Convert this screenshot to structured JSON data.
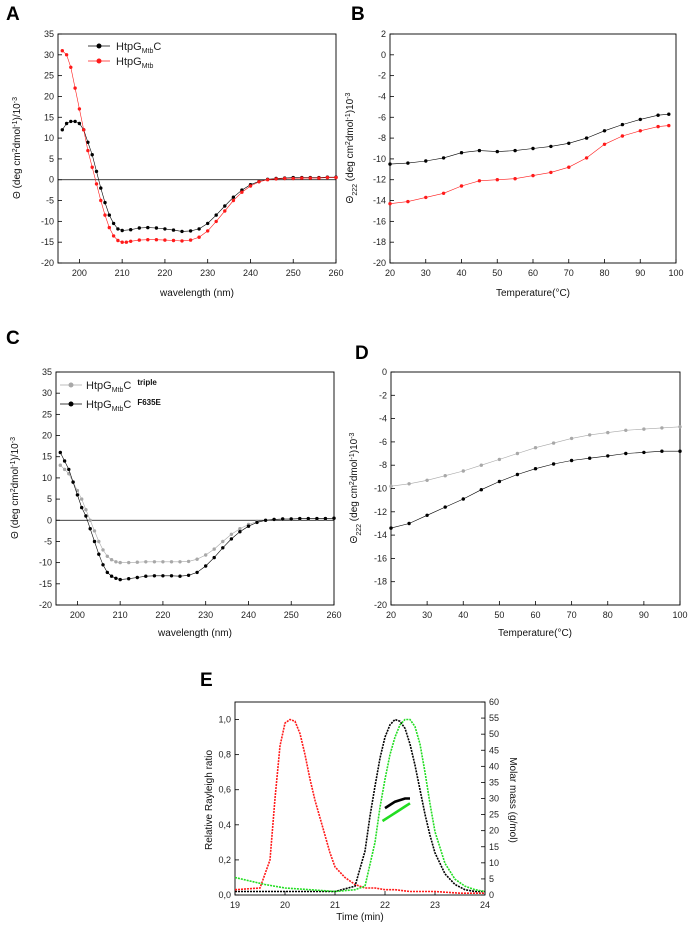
{
  "colors": {
    "black": "#000000",
    "red": "#ff1a1a",
    "grey": "#a8a8a8",
    "green": "#22dd22"
  },
  "chart_data": [
    {
      "panel": "A",
      "type": "scatter",
      "xlabel": "wavelength (nm)",
      "ylabel_main": "Θ (deg cm",
      "ylabel_sup": "2",
      "ylabel_mid": "dmol",
      "ylabel_sup2": "-1",
      "ylabel_end": ")/10",
      "ylabel_sup3": "-3",
      "xlim": [
        195,
        260
      ],
      "ylim": [
        -20,
        35
      ],
      "xticks": [
        "200",
        "210",
        "220",
        "230",
        "240",
        "250",
        "260"
      ],
      "yticks": [
        "35",
        "30",
        "25",
        "20",
        "15",
        "10",
        "5",
        "0",
        "-5",
        "-10",
        "-15",
        "-20"
      ],
      "series": [
        {
          "name": "HtpG",
          "name_sub": "Mtb",
          "name_suffix": "C",
          "color": "#000000",
          "x": [
            196,
            197,
            198,
            199,
            200,
            201,
            202,
            203,
            204,
            205,
            206,
            207,
            208,
            209,
            210,
            212,
            214,
            216,
            218,
            220,
            222,
            224,
            226,
            228,
            230,
            232,
            234,
            236,
            238,
            240,
            242,
            244,
            246,
            248,
            250,
            252,
            254,
            256,
            258,
            260
          ],
          "y": [
            12,
            13.5,
            14,
            14,
            13.5,
            12,
            9,
            6,
            2,
            -2,
            -5.5,
            -8.5,
            -10.5,
            -11.8,
            -12.2,
            -12,
            -11.6,
            -11.5,
            -11.6,
            -11.8,
            -12.1,
            -12.4,
            -12.3,
            -11.8,
            -10.5,
            -8.5,
            -6.3,
            -4.2,
            -2.5,
            -1.2,
            -0.4,
            0.1,
            0.3,
            0.4,
            0.5,
            0.5,
            0.5,
            0.5,
            0.6,
            0.6
          ]
        },
        {
          "name": "HtpG",
          "name_sub": "Mtb",
          "name_suffix": "",
          "color": "#ff1a1a",
          "x": [
            196,
            197,
            198,
            199,
            200,
            201,
            202,
            203,
            204,
            205,
            206,
            207,
            208,
            209,
            210,
            211,
            212,
            214,
            216,
            218,
            220,
            222,
            224,
            226,
            228,
            230,
            232,
            234,
            236,
            238,
            240,
            242,
            244,
            246,
            248,
            250,
            252,
            254,
            256,
            258,
            260
          ],
          "y": [
            31,
            30,
            27,
            22,
            17,
            12,
            7,
            3,
            -1,
            -5,
            -8.5,
            -11.5,
            -13.5,
            -14.6,
            -15,
            -15,
            -14.8,
            -14.5,
            -14.4,
            -14.4,
            -14.5,
            -14.6,
            -14.7,
            -14.5,
            -13.8,
            -12.3,
            -10,
            -7.5,
            -5,
            -3,
            -1.5,
            -0.5,
            0,
            0.2,
            0.3,
            0.3,
            0.4,
            0.4,
            0.4,
            0.5,
            0.5
          ]
        }
      ]
    },
    {
      "panel": "B",
      "type": "scatter",
      "xlabel": "Temperature(°C)",
      "ylabel_main": "Θ",
      "ylabel_sub": "222",
      "ylabel_rest": " (deg cm",
      "ylabel_sup": "2",
      "ylabel_mid": "dmol",
      "ylabel_sup2": "-1",
      "ylabel_end": ")10",
      "ylabel_sup3": "-3",
      "xlim": [
        20,
        100
      ],
      "ylim": [
        -20,
        2
      ],
      "xticks": [
        "20",
        "30",
        "40",
        "50",
        "60",
        "70",
        "80",
        "90",
        "100"
      ],
      "yticks": [
        "2",
        "0",
        "-2",
        "-4",
        "-6",
        "-8",
        "-10",
        "-12",
        "-14",
        "-16",
        "-18",
        "-20"
      ],
      "series": [
        {
          "name": "black",
          "color": "#000000",
          "x": [
            20,
            25,
            30,
            35,
            40,
            45,
            50,
            55,
            60,
            65,
            70,
            75,
            80,
            85,
            90,
            95,
            98
          ],
          "y": [
            -10.5,
            -10.4,
            -10.2,
            -9.9,
            -9.4,
            -9.2,
            -9.3,
            -9.2,
            -9,
            -8.8,
            -8.5,
            -8,
            -7.3,
            -6.7,
            -6.2,
            -5.8,
            -5.7
          ]
        },
        {
          "name": "red",
          "color": "#ff1a1a",
          "x": [
            20,
            25,
            30,
            35,
            40,
            45,
            50,
            55,
            60,
            65,
            70,
            75,
            80,
            85,
            90,
            95,
            98
          ],
          "y": [
            -14.3,
            -14.1,
            -13.7,
            -13.3,
            -12.6,
            -12.1,
            -12,
            -11.9,
            -11.6,
            -11.3,
            -10.8,
            -9.9,
            -8.6,
            -7.8,
            -7.3,
            -6.9,
            -6.8
          ]
        }
      ]
    },
    {
      "panel": "C",
      "type": "scatter",
      "xlabel": "wavelength (nm)",
      "ylabel_main": "Θ (deg cm",
      "ylabel_sup": "2",
      "ylabel_mid": "dmol",
      "ylabel_sup2": "-1",
      "ylabel_end": ")/10",
      "ylabel_sup3": "-3",
      "xlim": [
        195,
        260
      ],
      "ylim": [
        -20,
        35
      ],
      "xticks": [
        "200",
        "210",
        "220",
        "230",
        "240",
        "250",
        "260"
      ],
      "yticks": [
        "35",
        "30",
        "25",
        "20",
        "15",
        "10",
        "5",
        "0",
        "-5",
        "-10",
        "-15",
        "-20"
      ],
      "series": [
        {
          "name": "HtpG",
          "name_sub": "Mtb",
          "name_suffix": "C",
          "tag": "triple",
          "color": "#a8a8a8",
          "x": [
            196,
            197,
            198,
            199,
            200,
            201,
            202,
            203,
            204,
            205,
            206,
            207,
            208,
            209,
            210,
            212,
            214,
            216,
            218,
            220,
            222,
            224,
            226,
            228,
            230,
            232,
            234,
            236,
            238,
            240,
            242,
            244,
            246,
            248,
            250,
            252,
            254,
            256,
            258,
            260
          ],
          "y": [
            13,
            12,
            11,
            9,
            7,
            5,
            2.5,
            0,
            -2.5,
            -5,
            -7,
            -8.5,
            -9.3,
            -9.8,
            -10,
            -10,
            -9.9,
            -9.8,
            -9.8,
            -9.8,
            -9.8,
            -9.8,
            -9.7,
            -9.2,
            -8.2,
            -6.8,
            -5,
            -3.3,
            -2,
            -1,
            -0.3,
            0,
            0.2,
            0.3,
            0.3,
            0.4,
            0.4,
            0.4,
            0.4,
            0.5
          ]
        },
        {
          "name": "HtpG",
          "name_sub": "Mtb",
          "name_suffix": "C",
          "tag": "F635E",
          "color": "#000000",
          "x": [
            196,
            197,
            198,
            199,
            200,
            201,
            202,
            203,
            204,
            205,
            206,
            207,
            208,
            209,
            210,
            212,
            214,
            216,
            218,
            220,
            222,
            224,
            226,
            228,
            230,
            232,
            234,
            236,
            238,
            240,
            242,
            244,
            246,
            248,
            250,
            252,
            254,
            256,
            258,
            260
          ],
          "y": [
            16,
            14,
            12,
            9,
            6,
            3,
            1,
            -2,
            -5,
            -8,
            -10.5,
            -12.3,
            -13.2,
            -13.7,
            -14,
            -13.8,
            -13.5,
            -13.2,
            -13.1,
            -13.1,
            -13.1,
            -13.2,
            -13,
            -12.3,
            -10.8,
            -8.8,
            -6.5,
            -4.4,
            -2.7,
            -1.4,
            -0.5,
            0,
            0.2,
            0.3,
            0.3,
            0.4,
            0.4,
            0.4,
            0.4,
            0.5
          ]
        }
      ]
    },
    {
      "panel": "D",
      "type": "scatter",
      "xlabel": "Temperature(°C)",
      "ylabel_main": "Θ",
      "ylabel_sub": "222",
      "ylabel_rest": " (deg cm",
      "ylabel_sup": "2",
      "ylabel_mid": "dmol",
      "ylabel_sup2": "-1",
      "ylabel_end": ")10",
      "ylabel_sup3": "-3",
      "xlim": [
        20,
        100
      ],
      "ylim": [
        -20,
        0
      ],
      "xticks": [
        "20",
        "30",
        "40",
        "50",
        "60",
        "70",
        "80",
        "90",
        "100"
      ],
      "yticks": [
        "0",
        "-2",
        "-4",
        "-6",
        "-8",
        "-10",
        "-12",
        "-14",
        "-16",
        "-18",
        "-20"
      ],
      "series": [
        {
          "name": "grey",
          "color": "#a8a8a8",
          "x": [
            20,
            25,
            30,
            35,
            40,
            45,
            50,
            55,
            60,
            65,
            70,
            75,
            80,
            85,
            90,
            95,
            100
          ],
          "y": [
            -9.8,
            -9.6,
            -9.3,
            -8.9,
            -8.5,
            -8,
            -7.5,
            -7,
            -6.5,
            -6.1,
            -5.7,
            -5.4,
            -5.2,
            -5,
            -4.9,
            -4.8,
            -4.7
          ]
        },
        {
          "name": "black",
          "color": "#000000",
          "x": [
            20,
            25,
            30,
            35,
            40,
            45,
            50,
            55,
            60,
            65,
            70,
            75,
            80,
            85,
            90,
            95,
            100
          ],
          "y": [
            -13.4,
            -13,
            -12.3,
            -11.6,
            -10.9,
            -10.1,
            -9.4,
            -8.8,
            -8.3,
            -7.9,
            -7.6,
            -7.4,
            -7.2,
            -7,
            -6.9,
            -6.8,
            -6.8
          ]
        }
      ]
    },
    {
      "panel": "E",
      "type": "line",
      "xlabel": "Time (min)",
      "ylabel": "Relative Rayleigh ratio",
      "ylabel_right": "Molar mass (g/mol)",
      "xlim": [
        19,
        24
      ],
      "ylim": [
        0,
        1.1
      ],
      "ylim_right": [
        0,
        60
      ],
      "xticks": [
        "19",
        "20",
        "21",
        "22",
        "23",
        "24"
      ],
      "yticks": [
        "1,0",
        "0,8",
        "0,6",
        "0,4",
        "0,2",
        "0,0"
      ],
      "yticks_right": [
        "60",
        "55",
        "50",
        "45",
        "40",
        "35",
        "30",
        "25",
        "20",
        "15",
        "10",
        "5",
        "0"
      ],
      "series": [
        {
          "name": "red",
          "color": "#ff1a1a",
          "x": [
            19,
            19.5,
            19.7,
            19.8,
            19.9,
            20,
            20.1,
            20.2,
            20.3,
            20.4,
            20.5,
            20.6,
            20.7,
            20.8,
            20.9,
            21,
            21.2,
            21.4,
            21.6,
            21.8,
            22,
            22.2,
            22.5,
            23,
            23.5,
            24
          ],
          "y": [
            0.03,
            0.04,
            0.2,
            0.55,
            0.85,
            0.98,
            1,
            0.99,
            0.92,
            0.8,
            0.66,
            0.54,
            0.44,
            0.34,
            0.24,
            0.16,
            0.1,
            0.06,
            0.04,
            0.04,
            0.03,
            0.03,
            0.02,
            0.02,
            0.01,
            0.01
          ]
        },
        {
          "name": "black",
          "color": "#000000",
          "x": [
            19,
            20,
            21,
            21.4,
            21.6,
            21.7,
            21.8,
            21.9,
            22,
            22.1,
            22.2,
            22.3,
            22.4,
            22.5,
            22.6,
            22.7,
            22.8,
            22.9,
            23,
            23.2,
            23.4,
            23.6,
            23.8,
            24
          ],
          "y": [
            0.02,
            0.02,
            0.02,
            0.05,
            0.25,
            0.45,
            0.62,
            0.78,
            0.9,
            0.97,
            1,
            0.99,
            0.95,
            0.86,
            0.74,
            0.6,
            0.46,
            0.34,
            0.24,
            0.12,
            0.06,
            0.03,
            0.02,
            0.02
          ]
        },
        {
          "name": "green",
          "color": "#22dd22",
          "x": [
            19,
            19.3,
            19.6,
            20,
            20.5,
            21,
            21.4,
            21.6,
            21.8,
            21.9,
            22,
            22.1,
            22.2,
            22.3,
            22.4,
            22.5,
            22.6,
            22.7,
            22.8,
            22.9,
            23,
            23.2,
            23.4,
            23.6,
            23.8,
            24
          ],
          "y": [
            0.1,
            0.08,
            0.06,
            0.04,
            0.03,
            0.02,
            0.03,
            0.05,
            0.3,
            0.5,
            0.66,
            0.8,
            0.9,
            0.97,
            1,
            1,
            0.96,
            0.86,
            0.7,
            0.52,
            0.36,
            0.18,
            0.09,
            0.05,
            0.03,
            0.02
          ]
        },
        {
          "name": "molar-black",
          "color": "#000000",
          "axis": "right",
          "x": [
            22,
            22.1,
            22.2,
            22.3,
            22.4,
            22.5
          ],
          "y": [
            27,
            28,
            29,
            29.5,
            30,
            30
          ]
        },
        {
          "name": "molar-green",
          "color": "#22dd22",
          "axis": "right",
          "x": [
            21.95,
            22.1,
            22.25,
            22.4,
            22.5
          ],
          "y": [
            23,
            24.5,
            26,
            27.5,
            28.5
          ]
        }
      ]
    }
  ]
}
